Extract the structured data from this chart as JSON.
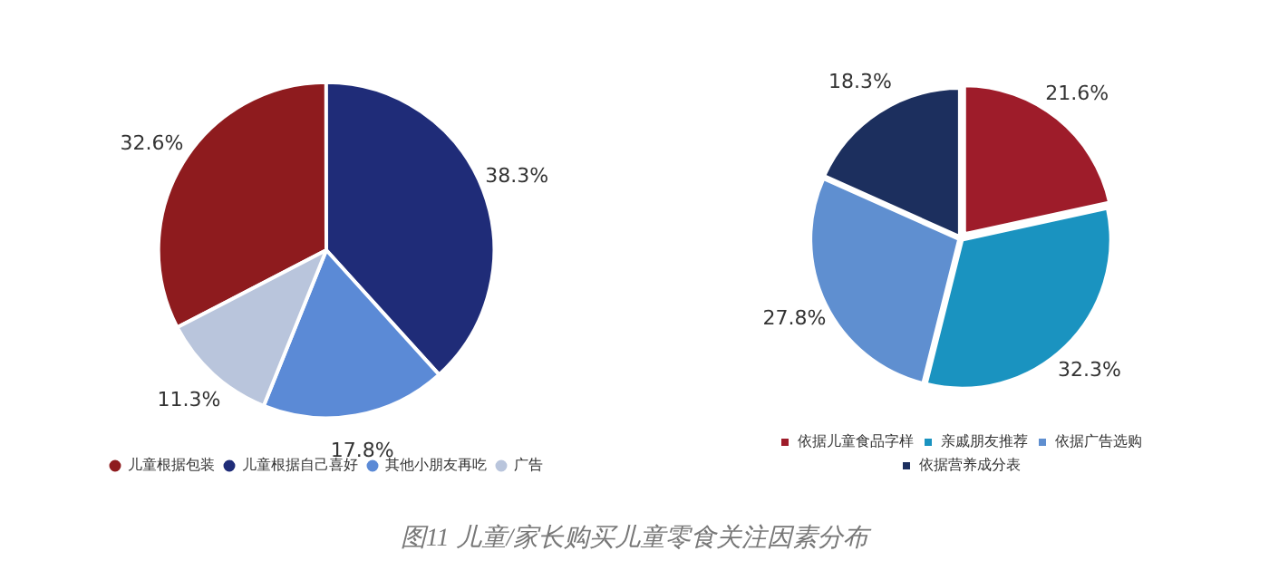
{
  "chart_data": [
    {
      "type": "pie",
      "categories": [
        "儿童根据包装",
        "儿童根据自己喜好",
        "其他小朋友再吃",
        "广告"
      ],
      "values": [
        32.6,
        38.3,
        17.8,
        11.3
      ],
      "colors": [
        "#8e1b1e",
        "#1f2c78",
        "#5b8ad6",
        "#b9c5dc"
      ],
      "value_labels": [
        "32.6%",
        "38.3%",
        "17.8%",
        "11.3%"
      ],
      "legend": "bottom",
      "annotations": [
        "图11 儿童/家长购买儿童零食关注因素分布"
      ]
    },
    {
      "type": "pie",
      "categories": [
        "依据儿童食品字样",
        "亲戚朋友推荐",
        "依据广告选购",
        "依据营养成分表"
      ],
      "values": [
        21.6,
        32.3,
        27.8,
        18.3
      ],
      "colors": [
        "#9e1c2a",
        "#1a93c0",
        "#5f8fd0",
        "#1c2f5e"
      ],
      "value_labels": [
        "21.6%",
        "32.3%",
        "27.8%",
        "18.3%"
      ],
      "legend": "bottom"
    }
  ]
}
